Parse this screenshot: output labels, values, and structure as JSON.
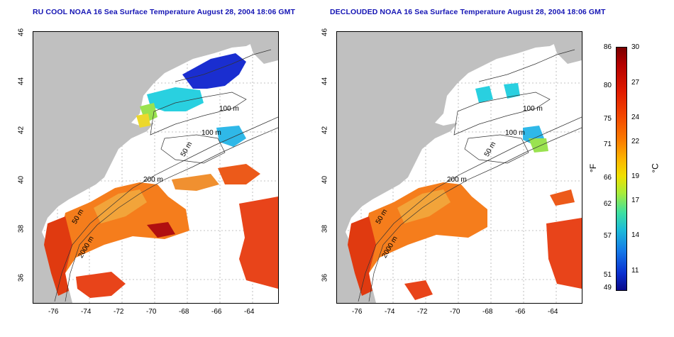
{
  "titles": {
    "left": "RU COOL NOAA 16 Sea Surface Temperature August 28, 2004 18:06 GMT",
    "right": "DECLOUDED NOAA 16 Sea Surface Temperature August 28, 2004 18:06 GMT"
  },
  "axes": {
    "x_ticks": [
      "-76",
      "-74",
      "-72",
      "-70",
      "-68",
      "-66",
      "-64"
    ],
    "y_ticks": [
      "46",
      "44",
      "42",
      "40",
      "38",
      "36"
    ]
  },
  "contour_labels": [
    "100 m",
    "100 m",
    "50 m",
    "200 m",
    "50 m",
    "2000 m"
  ],
  "colorbar": {
    "fahrenheit_unit": "°F",
    "celsius_unit": "°C",
    "fahrenheit_ticks": [
      "86",
      "80",
      "75",
      "71",
      "66",
      "62",
      "57",
      "51",
      "49"
    ],
    "celsius_ticks": [
      "30",
      "27",
      "24",
      "22",
      "19",
      "17",
      "14",
      "11"
    ]
  },
  "colors": {
    "title": "#1414b4",
    "land": "#c0c0c0",
    "no_data": "#ffffff"
  }
}
